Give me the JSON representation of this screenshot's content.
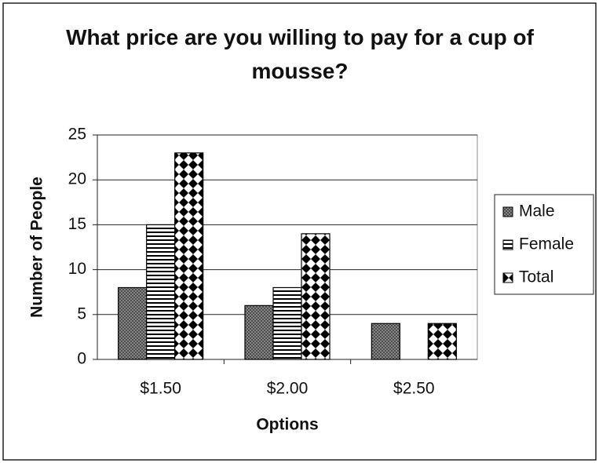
{
  "chart_data": {
    "type": "bar",
    "title": "What price are you willing to pay for a cup of mousse?",
    "x_label": "Options",
    "y_label": "Number of People",
    "categories": [
      "$1.50",
      "$2.00",
      "$2.50"
    ],
    "series": [
      {
        "name": "Male",
        "color": "#4a4a4a",
        "values": [
          8,
          6,
          4
        ]
      },
      {
        "name": "Female",
        "color": "#000000",
        "values": [
          15,
          8,
          0
        ]
      },
      {
        "name": "Total",
        "color": "#000000",
        "values": [
          23,
          14,
          4
        ]
      }
    ],
    "ylim": [
      0,
      25
    ],
    "yticks": [
      0,
      5,
      10,
      15,
      20,
      25
    ],
    "grid": true,
    "legend": "right"
  }
}
